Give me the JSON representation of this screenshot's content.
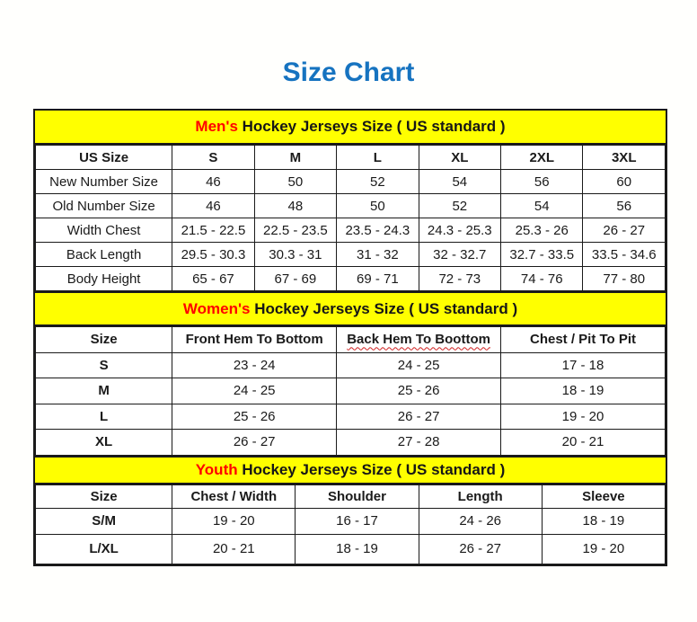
{
  "title": "Size Chart",
  "colors": {
    "title_blue": "#1673C0",
    "highlight_red": "#FF0000",
    "band_yellow": "#FFFF00",
    "border_black": "#1A1A1A"
  },
  "chart_data": [
    {
      "type": "table",
      "title": "Men's Hockey Jerseys Size ( US standard )",
      "title_highlight": "Men's",
      "title_rest": " Hockey Jerseys Size ( US standard )",
      "bold_first_col": false,
      "columns": [
        "US Size",
        "S",
        "M",
        "L",
        "XL",
        "2XL",
        "3XL"
      ],
      "rows": [
        [
          "New Number Size",
          "46",
          "50",
          "52",
          "54",
          "56",
          "60"
        ],
        [
          "Old Number Size",
          "46",
          "48",
          "50",
          "52",
          "54",
          "56"
        ],
        [
          "Width Chest",
          "21.5 - 22.5",
          "22.5 - 23.5",
          "23.5 - 24.3",
          "24.3 - 25.3",
          "25.3 - 26",
          "26 - 27"
        ],
        [
          "Back Length",
          "29.5 - 30.3",
          "30.3 - 31",
          "31 - 32",
          "32 - 32.7",
          "32.7 - 33.5",
          "33.5 - 34.6"
        ],
        [
          "Body Height",
          "65 - 67",
          "67 - 69",
          "69 - 71",
          "72 - 73",
          "74 - 76",
          "77 - 80"
        ]
      ]
    },
    {
      "type": "table",
      "title": "Women's Hockey Jerseys Size ( US standard )",
      "title_highlight": "Women's",
      "title_rest": " Hockey Jerseys Size ( US standard )",
      "bold_first_col": true,
      "columns": [
        "Size",
        "Front Hem To Bottom",
        {
          "text": "Back Hem To Boottom",
          "squiggle": true
        },
        "Chest / Pit To Pit"
      ],
      "rows": [
        [
          "S",
          "23 - 24",
          "24 - 25",
          "17 - 18"
        ],
        [
          "M",
          "24 - 25",
          "25 - 26",
          "18 - 19"
        ],
        [
          "L",
          "25 - 26",
          "26 - 27",
          "19 - 20"
        ],
        [
          "XL",
          "26 - 27",
          "27 - 28",
          "20 - 21"
        ]
      ]
    },
    {
      "type": "table",
      "title": "Youth Hockey Jerseys Size ( US standard )",
      "title_highlight": "Youth",
      "title_rest": " Hockey Jerseys Size ( US standard )",
      "bold_first_col": true,
      "columns": [
        "Size",
        "Chest / Width",
        "Shoulder",
        "Length",
        "Sleeve"
      ],
      "rows": [
        [
          "S/M",
          "19 - 20",
          "16 - 17",
          "24 - 26",
          "18 - 19"
        ],
        [
          "L/XL",
          "20 - 21",
          "18 - 19",
          "26 - 27",
          "19 - 20"
        ]
      ]
    }
  ]
}
